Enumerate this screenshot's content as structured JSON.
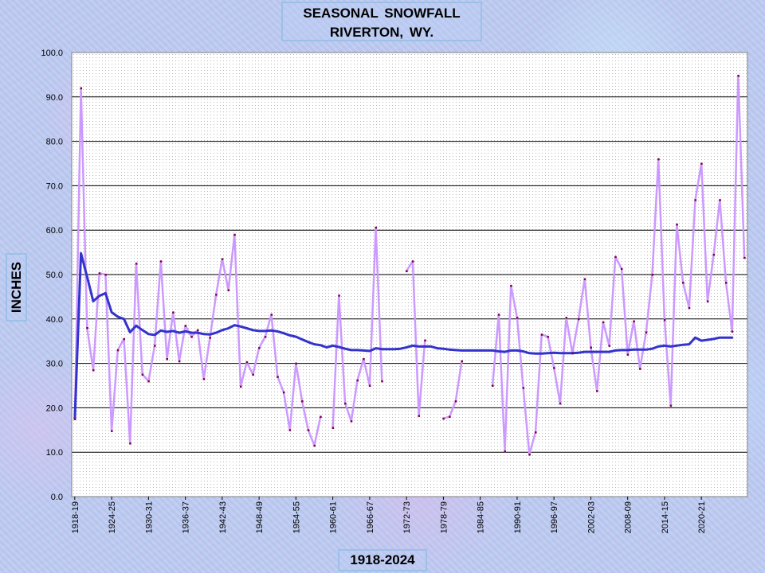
{
  "chart_data": {
    "type": "line",
    "title_line1": "SEASONAL SNOWFALL",
    "title_line2": "RIVERTON, WY.",
    "ylabel": "INCHES",
    "xlabel": "1918-2024",
    "ylim": [
      0,
      100
    ],
    "yticks": [
      "0.0",
      "10.0",
      "20.0",
      "30.0",
      "40.0",
      "50.0",
      "60.0",
      "70.0",
      "80.0",
      "90.0",
      "100.0"
    ],
    "season_start_year": [
      1918,
      2024
    ],
    "grid": true,
    "xtick_labels": [
      "1918-19",
      "1924-25",
      "1930-31",
      "1936-37",
      "1942-43",
      "1948-49",
      "1954-55",
      "1960-61",
      "1966-67",
      "1972-73",
      "1978-79",
      "1984-85",
      "1990-91",
      "1996-97",
      "2002-03",
      "2008-09",
      "2014-15",
      "2020-21"
    ],
    "colors": {
      "seasonal": "#cc99ff",
      "average": "#3333cc",
      "marker": "#800040",
      "plot_bg": "#ffffff",
      "grid": "#000000"
    },
    "series": [
      {
        "role": "seasonal",
        "values": [
          17.5,
          92.0,
          38.0,
          28.5,
          50.3,
          50.0,
          14.8,
          33.0,
          35.5,
          12.0,
          52.5,
          27.5,
          26.0,
          34.0,
          53.0,
          31.0,
          41.5,
          30.5,
          38.5,
          36.0,
          37.5,
          26.5,
          35.8,
          45.5,
          53.5,
          46.5,
          59.0,
          24.8,
          30.3,
          27.5,
          33.5,
          36.0,
          41.0,
          27.0,
          23.5,
          15.0,
          30.0,
          21.5,
          15.0,
          11.5,
          18.0,
          null,
          15.5,
          45.3,
          21.0,
          17.0,
          26.2,
          31.0,
          25.0,
          60.6,
          26.0,
          null,
          null,
          null,
          50.8,
          53.0,
          18.2,
          35.2,
          null,
          null,
          17.6,
          18.0,
          21.5,
          30.5,
          null,
          null,
          null,
          null,
          25.0,
          41.0,
          10.2,
          47.5,
          40.3,
          24.5,
          9.5,
          14.5,
          36.5,
          36.0,
          29.0,
          21.0,
          40.3,
          32.3,
          40.0,
          49.0,
          33.6,
          23.8,
          39.3,
          34.0,
          54.0,
          51.3,
          32.0,
          39.5,
          28.8,
          37.0,
          50.0,
          76.0,
          39.8,
          20.5,
          61.3,
          48.2,
          42.5,
          66.8,
          75.0,
          44.0,
          54.5,
          66.8,
          48.2,
          37.2,
          94.8,
          53.8
        ]
      },
      {
        "role": "average",
        "values": [
          17.5,
          54.8,
          49.5,
          44.0,
          45.2,
          45.8,
          41.5,
          40.5,
          40.0,
          37.0,
          38.5,
          37.5,
          36.6,
          36.4,
          37.4,
          37.1,
          37.3,
          36.9,
          37.2,
          36.9,
          36.9,
          36.6,
          36.5,
          36.9,
          37.5,
          37.9,
          38.6,
          38.3,
          37.9,
          37.5,
          37.3,
          37.3,
          37.4,
          37.2,
          36.8,
          36.3,
          36.0,
          35.4,
          34.8,
          34.3,
          34.1,
          33.6,
          34.0,
          33.7,
          33.3,
          33.0,
          33.0,
          32.9,
          32.8,
          33.4,
          33.2,
          33.2,
          33.2,
          33.3,
          33.6,
          34.0,
          33.8,
          33.8,
          33.8,
          33.4,
          33.3,
          33.1,
          33.0,
          32.9,
          32.9,
          32.9,
          32.9,
          32.9,
          32.9,
          32.7,
          32.6,
          32.9,
          32.9,
          32.7,
          32.3,
          32.2,
          32.2,
          32.3,
          32.4,
          32.3,
          32.3,
          32.3,
          32.4,
          32.6,
          32.6,
          32.6,
          32.6,
          32.6,
          32.9,
          33.0,
          33.0,
          33.1,
          33.1,
          33.1,
          33.3,
          33.8,
          34.0,
          33.8,
          34.0,
          34.2,
          34.3,
          35.8,
          35.1,
          35.3,
          35.5,
          35.8,
          35.8,
          35.8
        ]
      }
    ]
  }
}
